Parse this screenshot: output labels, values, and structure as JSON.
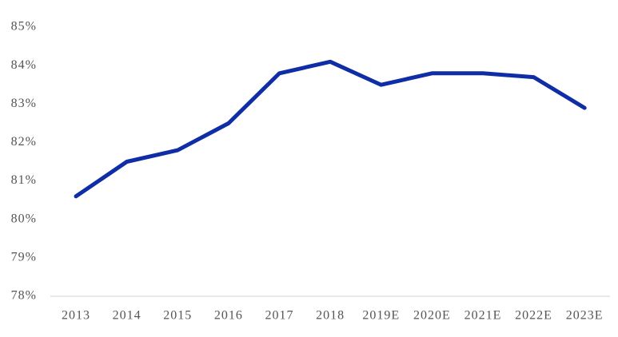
{
  "chart_data": {
    "type": "line",
    "categories": [
      "2013",
      "2014",
      "2015",
      "2016",
      "2017",
      "2018",
      "2019E",
      "2020E",
      "2021E",
      "2022E",
      "2023E"
    ],
    "values": [
      80.6,
      81.5,
      81.8,
      82.5,
      83.8,
      84.1,
      83.5,
      83.8,
      83.8,
      83.7,
      82.9
    ],
    "color": "#0f2ea6",
    "ylim": [
      78,
      85
    ],
    "yticks": [
      {
        "value": 78,
        "label": "78%"
      },
      {
        "value": 79,
        "label": "79%"
      },
      {
        "value": 80,
        "label": "80%"
      },
      {
        "value": 81,
        "label": "81%"
      },
      {
        "value": 82,
        "label": "82%"
      },
      {
        "value": 83,
        "label": "83%"
      },
      {
        "value": 84,
        "label": "84%"
      },
      {
        "value": 85,
        "label": "85%"
      }
    ],
    "grid": false
  }
}
